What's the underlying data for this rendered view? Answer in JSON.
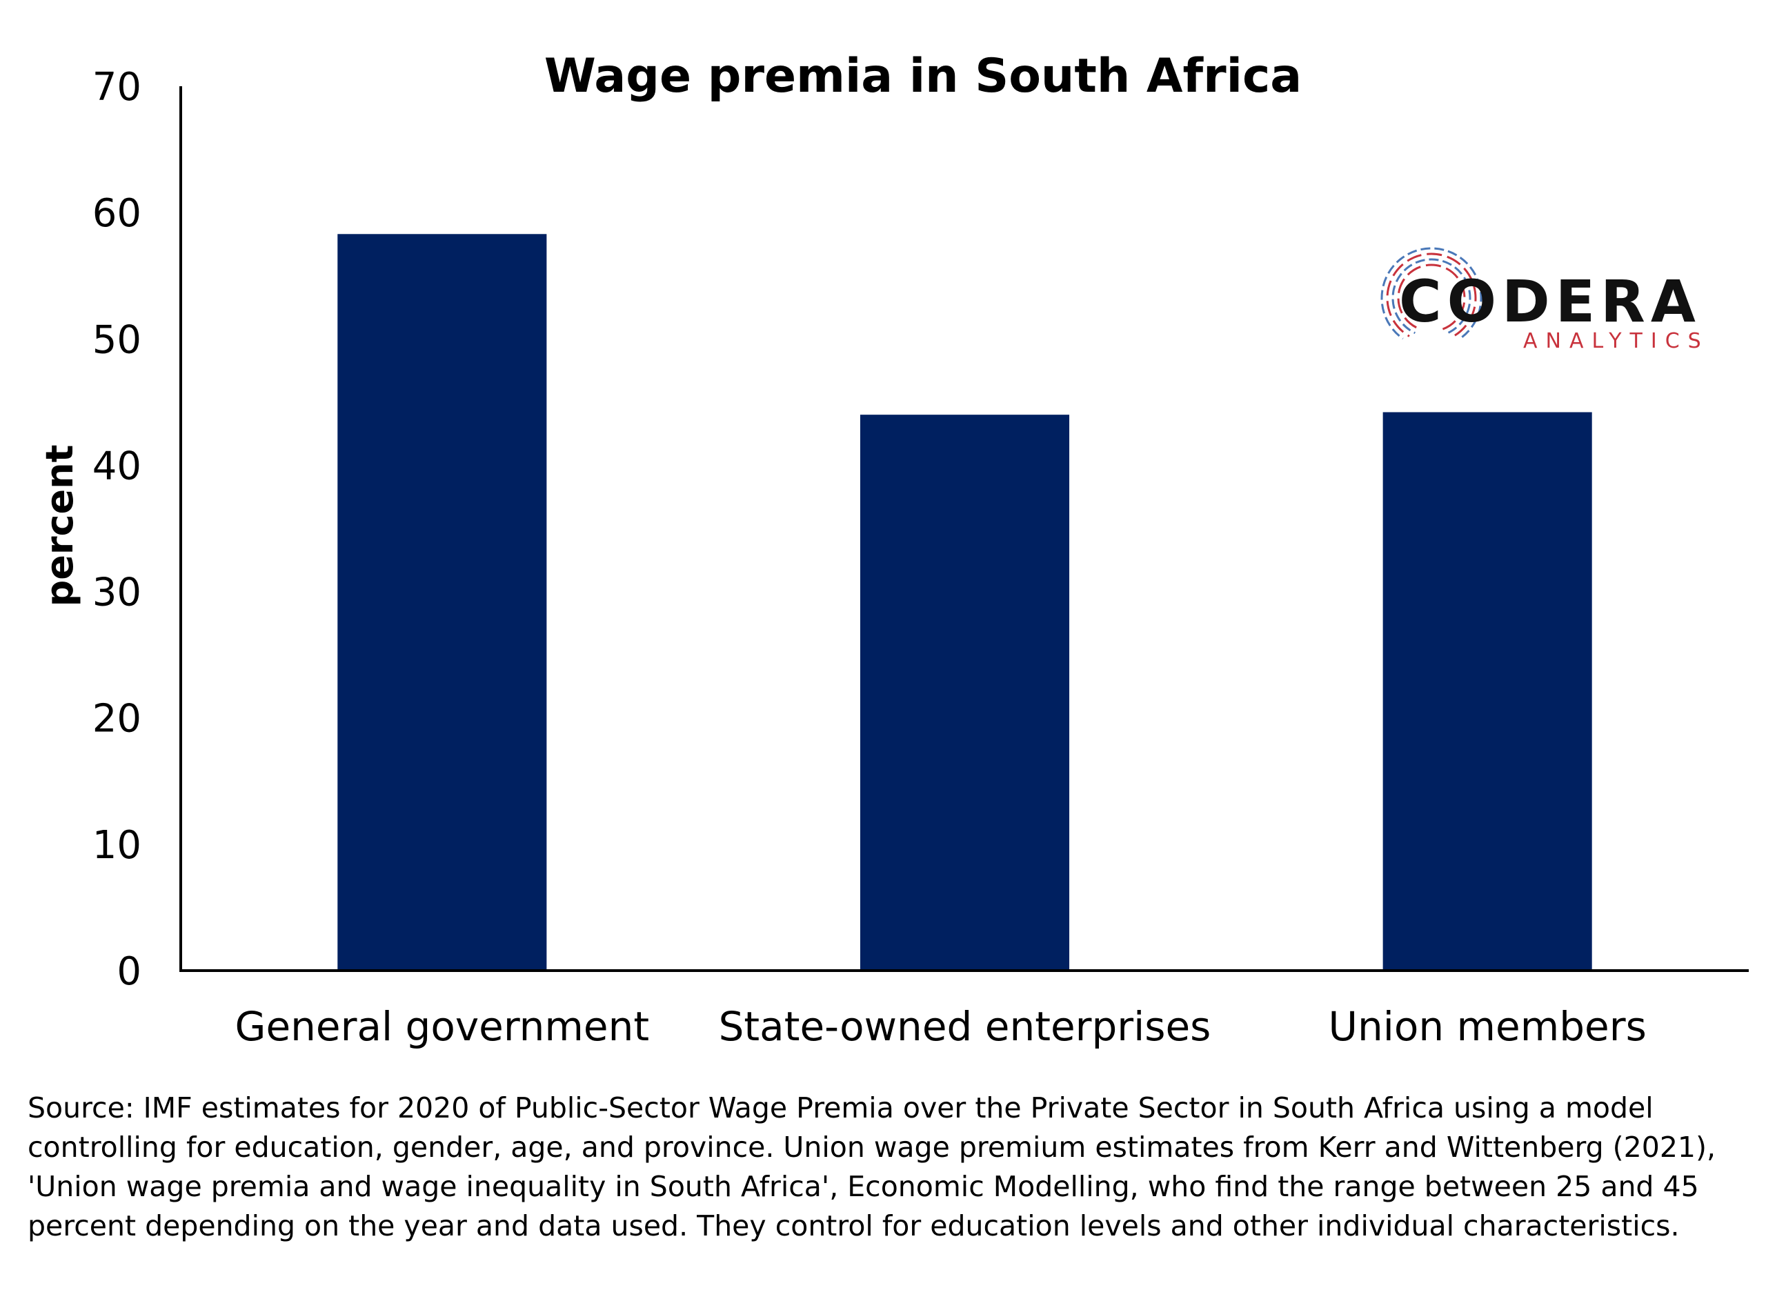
{
  "chart_data": {
    "type": "bar",
    "title": "Wage premia in South Africa",
    "xlabel": "",
    "ylabel": "percent",
    "categories": [
      "General government",
      "State-owned enterprises",
      "Union members"
    ],
    "values": [
      58.3,
      44.0,
      44.2
    ],
    "ylim": [
      0,
      70
    ],
    "yticks": [
      0,
      10,
      20,
      30,
      40,
      50,
      60,
      70
    ],
    "bar_color": "#002060",
    "grid": false,
    "legend": "none"
  },
  "logo": {
    "name": "CODERA",
    "subtitle": "ANALYTICS"
  },
  "colors": {
    "bar": "#002060",
    "axis": "#000000",
    "logo_red": "#c8323c",
    "logo_blue": "#4a78b8"
  },
  "source_note": "Source: IMF estimates for 2020 of Public-Sector Wage Premia over the Private Sector in South Africa using a model controlling for education, gender, age, and province. Union wage premium estimates from Kerr and Wittenberg (2021), 'Union wage premia and wage inequality in South Africa', Economic Modelling, who find the range between 25 and 45 percent depending on the year and data used. They control for education levels and other individual characteristics."
}
